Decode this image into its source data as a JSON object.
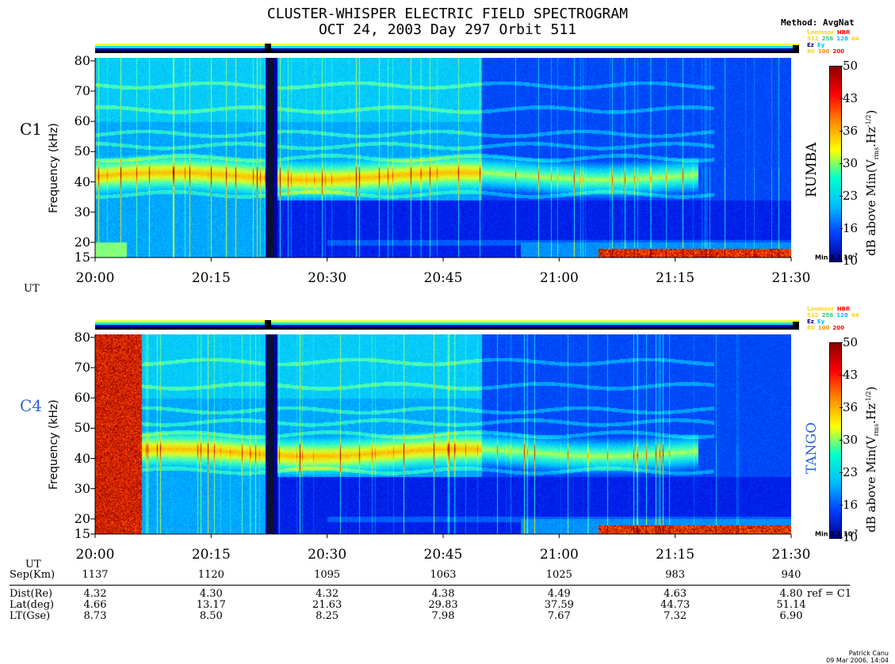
{
  "title_line1": "CLUSTER-WHISPER ELECTRIC FIELD SPECTROGRAM",
  "title_line2": "OCT 24, 2003 Day 297      Orbit 511",
  "method": "Method: AvgNat",
  "mode_legend": {
    "row1": [
      "Loomsor",
      "HBR"
    ],
    "row2": [
      "512",
      "256",
      "128",
      "64"
    ],
    "row3": [
      "Ez",
      "Ey"
    ],
    "row4": [
      "80",
      "100",
      "200"
    ]
  },
  "colorbar": {
    "ticks": [
      "50",
      "43",
      "36",
      "30",
      "23",
      "16",
      "10"
    ],
    "label": "dB above Min(V",
    "label_sub": "rms",
    "label_mid": ".Hz",
    "label_sup": "-1/2",
    "label_end": ")",
    "min_note": "Min 3.1 10",
    "min_note_sup": "-7",
    "colors": [
      "#8b0000",
      "#ff0000",
      "#ff8c00",
      "#ffff00",
      "#00ffcc",
      "#00bfff",
      "#0040ff",
      "#00008b"
    ]
  },
  "footer": {
    "author": "Patrick Canu",
    "date": "09 Mar 2006, 14:04"
  },
  "chart_data": [
    {
      "type": "heatmap",
      "panel_label": "C1",
      "spacecraft_name": "RUMBA",
      "ylabel": "Frequency (kHz)",
      "xlabel": "UT",
      "y_ticks": [
        "80",
        "70",
        "60",
        "50",
        "40",
        "30",
        "20",
        "15"
      ],
      "x_ticks": [
        "20:00",
        "20:15",
        "20:30",
        "20:45",
        "21:00",
        "21:15",
        "21:30"
      ],
      "ylim": [
        15,
        81
      ],
      "xlim": [
        "20:00",
        "21:30"
      ],
      "zlim": [
        10,
        50
      ]
    },
    {
      "type": "heatmap",
      "panel_label": "C4",
      "spacecraft_name": "TANGO",
      "ylabel": "Frequency (kHz)",
      "xlabel": "UT",
      "y_ticks": [
        "80",
        "70",
        "60",
        "50",
        "40",
        "30",
        "20",
        "15"
      ],
      "x_ticks": [
        "20:00",
        "20:15",
        "20:30",
        "20:45",
        "21:00",
        "21:15",
        "21:30"
      ],
      "ylim": [
        15,
        81
      ],
      "xlim": [
        "20:00",
        "21:30"
      ],
      "zlim": [
        10,
        50
      ]
    }
  ],
  "orbit_table": {
    "ut_label": "UT",
    "sep_label": "Sep(Km)",
    "sep": [
      "1137",
      "1120",
      "1095",
      "1063",
      "1025",
      "983",
      "940"
    ],
    "rows": [
      {
        "label": "Dist(Re)",
        "values": [
          "4.32",
          "4.30",
          "4.32",
          "4.38",
          "4.49",
          "4.63",
          "4.80"
        ],
        "suffix": "ref = C1"
      },
      {
        "label": "Lat(deg)",
        "values": [
          "4.66",
          "13.17",
          "21.63",
          "29.83",
          "37.59",
          "44.73",
          "51.14"
        ],
        "suffix": ""
      },
      {
        "label": "LT(Gse)",
        "values": [
          "8.73",
          "8.50",
          "8.25",
          "7.98",
          "7.67",
          "7.32",
          "6.90"
        ],
        "suffix": ""
      }
    ]
  }
}
